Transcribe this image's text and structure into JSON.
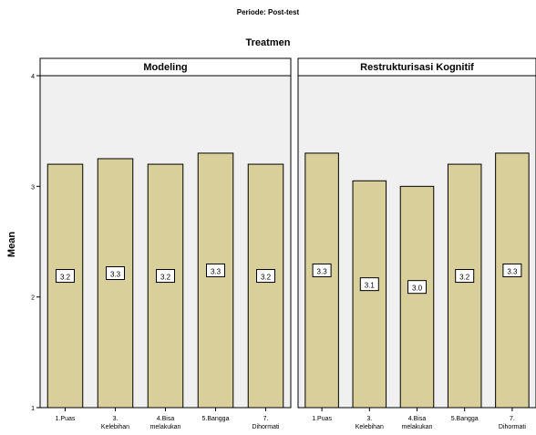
{
  "header": {
    "subtitle": "Periode: Post-test",
    "title": "Treatmen"
  },
  "chart_data": {
    "type": "bar",
    "ylabel": "Mean",
    "ylim": [
      1,
      4
    ],
    "yticks": [
      "1",
      "2",
      "3",
      "4"
    ],
    "bar_color": "#d9cf9a",
    "panel_background": "#f0f0f0",
    "panels": [
      {
        "title": "Modeling",
        "categories": [
          [
            "1.Puas"
          ],
          [
            "3.",
            "Kelebihan"
          ],
          [
            "4.Bisa",
            "melakukan"
          ],
          [
            "5.Bangga"
          ],
          [
            "7.",
            "Dihormati"
          ]
        ],
        "values": [
          3.2,
          3.25,
          3.2,
          3.3,
          3.2
        ],
        "labels": [
          "3.2",
          "3.3",
          "3.2",
          "3.3",
          "3.2"
        ]
      },
      {
        "title": "Restrukturisasi Kognitif",
        "categories": [
          [
            "1.Puas"
          ],
          [
            "3.",
            "Kelebihan"
          ],
          [
            "4.Bisa",
            "melakukan"
          ],
          [
            "5.Bangga"
          ],
          [
            "7.",
            "Dihormati"
          ]
        ],
        "values": [
          3.3,
          3.05,
          3.0,
          3.2,
          3.3
        ],
        "labels": [
          "3.3",
          "3.1",
          "3.0",
          "3.2",
          "3.3"
        ]
      }
    ]
  }
}
